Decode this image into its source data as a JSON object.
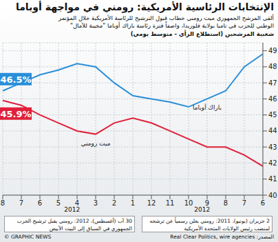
{
  "chart_data": {
    "type": "line",
    "title": "الإنتخابات الرئاسية الأمريكية: رومني في مواجهة أوباما",
    "subtitle": "ألقى المرشح الجمهوري ميت رومني خطاب قبول الترشيح للرئاسة الأمريكية خلال المؤتمر الوطني للحزب في تامبا بولاية فلوريدا، واصفاً فترة رئاسة باراك أوباما \"مخيبة للآمال\"",
    "y_label": "شعبية المرشحين (استطلاع الرأي - متوسط يومي)",
    "categories": [
      "8",
      "7",
      "6",
      "5",
      "4",
      "3",
      "2",
      "1",
      "12",
      "11",
      "10",
      "9",
      "8",
      "7",
      "6"
    ],
    "year_labels": [
      "2012",
      "2012"
    ],
    "series": [
      {
        "name": "باراك أوباما",
        "color": "#2a8fd8",
        "values": [
          46.5,
          47.0,
          47.5,
          47.8,
          48.2,
          48.0,
          47.0,
          46.2,
          46.0,
          45.8,
          45.5,
          46.0,
          46.5,
          48.0,
          48.8
        ],
        "value_labels": [
          "46.5%",
          null,
          null,
          null,
          null,
          null,
          null,
          null,
          null,
          null,
          null,
          null,
          null,
          null,
          null
        ]
      },
      {
        "name": "ميت رومني",
        "color": "#e0203a",
        "values": [
          45.9,
          45.6,
          45.0,
          44.5,
          44.0,
          43.8,
          44.5,
          44.8,
          44.5,
          44.0,
          43.5,
          43.0,
          43.0,
          42.5,
          41.8
        ],
        "value_labels": [
          "45.9%",
          null,
          null,
          null,
          null,
          null,
          null,
          null,
          null,
          null,
          null,
          null,
          null,
          null,
          null
        ]
      }
    ],
    "ylim": [
      40,
      49.5
    ],
    "yticks": [
      40,
      41,
      42,
      43,
      44,
      45,
      46,
      47,
      48,
      49
    ],
    "grid": true,
    "annotations": [
      "30 آب (أغسطس)، 2012: رومني يقبل ترشيح الحزب الجمهوري في السباق إلى البيت الأبيض",
      "2 حزيران (يونيو)، 2011: رومني يعلن رسمياً عن ترشحه لمنصب رئيس الولايات المتحدة الأمريكية"
    ],
    "source": "المصدر: Real Clear Politics, wire agencies",
    "credit": "© GRAPHIC NEWS"
  }
}
